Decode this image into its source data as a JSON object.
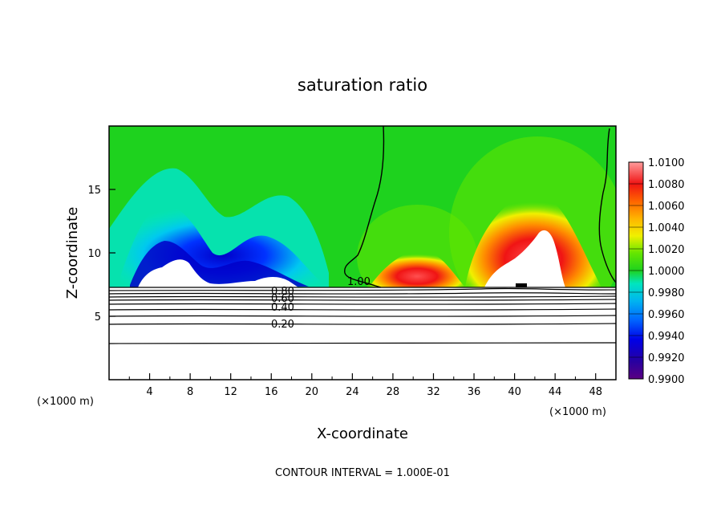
{
  "chart_data": {
    "type": "heatmap",
    "title": "saturation ratio",
    "xlabel": "X-coordinate",
    "ylabel": "Z-coordinate",
    "x_unit_label": "(×1000 m)",
    "xlim": [
      0,
      50
    ],
    "ylim": [
      0,
      20
    ],
    "x_ticks": [
      4,
      8,
      12,
      16,
      20,
      24,
      28,
      32,
      36,
      40,
      44,
      48
    ],
    "y_ticks": [
      5,
      10,
      15
    ],
    "colorbar": {
      "min": 0.99,
      "max": 1.01,
      "tick_labels": [
        "0.9900",
        "0.9920",
        "0.9940",
        "0.9960",
        "0.9980",
        "1.0000",
        "1.0020",
        "1.0040",
        "1.0060",
        "1.0080",
        "1.0100"
      ]
    },
    "contour_labels": [
      "1.00",
      "0.80",
      "0.60",
      "0.40",
      "0.20"
    ],
    "contour_interval_text": "CONTOUR INTERVAL = 1.000E-01",
    "colors": {
      "background_field": "#1ed21e",
      "dry_min": "#3c007d",
      "dry_blue": "#0032ff",
      "dry_cyan": "#00e6e6",
      "moist_red": "#f01414",
      "moist_pink": "#ff8c8c",
      "cloud": "#ffffff"
    }
  }
}
